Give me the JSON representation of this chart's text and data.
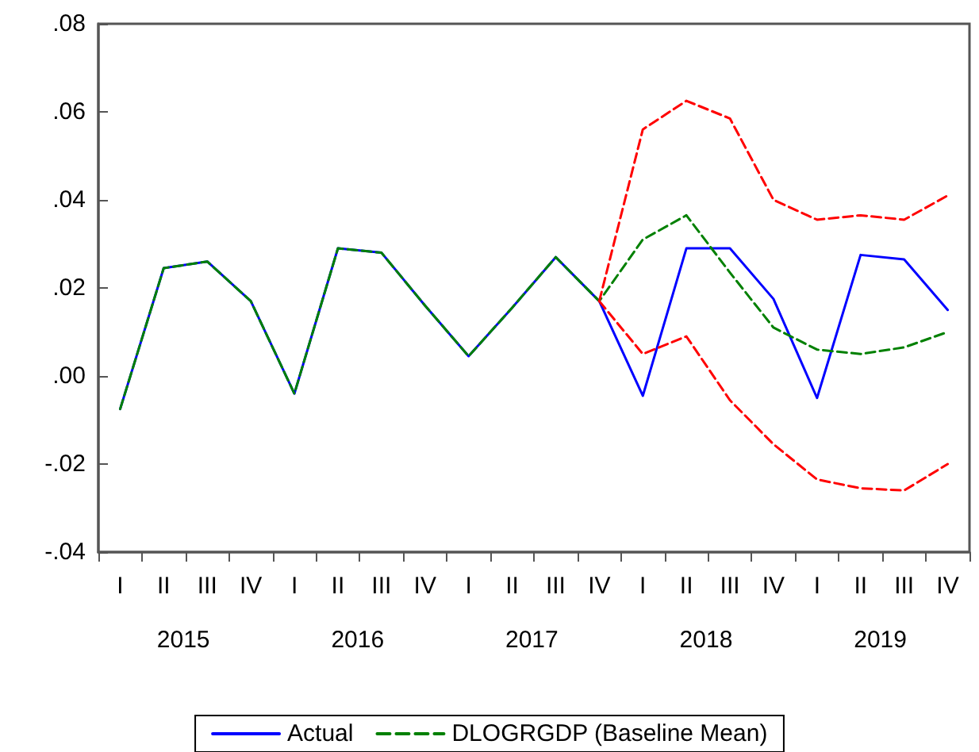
{
  "chart_data": {
    "type": "line",
    "categories": [
      "I",
      "II",
      "III",
      "IV",
      "I",
      "II",
      "III",
      "IV",
      "I",
      "II",
      "III",
      "IV",
      "I",
      "II",
      "III",
      "IV",
      "I",
      "II",
      "III",
      "IV"
    ],
    "annotations": [
      "2015",
      "2016",
      "2017",
      "2018",
      "2019"
    ],
    "series": [
      {
        "name": "Actual",
        "color": "#0000ff",
        "line_style": "solid",
        "values": [
          -0.0075,
          0.0245,
          0.026,
          0.017,
          -0.004,
          0.029,
          0.028,
          0.016,
          0.0045,
          0.0155,
          0.027,
          0.017,
          -0.0045,
          0.029,
          0.029,
          0.0175,
          -0.005,
          0.0275,
          0.0265,
          0.015
        ]
      },
      {
        "name": "DLOGRGDP (Baseline Mean)",
        "color": "#008000",
        "line_style": "dashed",
        "values": [
          -0.0075,
          0.0245,
          0.026,
          0.017,
          -0.004,
          0.029,
          0.028,
          0.016,
          0.0045,
          0.0155,
          0.027,
          0.017,
          0.031,
          0.0365,
          0.0235,
          0.011,
          0.006,
          0.005,
          0.0065,
          0.01
        ]
      },
      {
        "color": "#ff0000",
        "line_style": "dashed",
        "values": [
          null,
          null,
          null,
          null,
          null,
          null,
          null,
          null,
          null,
          null,
          null,
          0.017,
          0.056,
          0.0625,
          0.0585,
          0.04,
          0.0355,
          0.0365,
          0.0355,
          0.041
        ]
      },
      {
        "color": "#ff0000",
        "line_style": "dashed",
        "values": [
          null,
          null,
          null,
          null,
          null,
          null,
          null,
          null,
          null,
          null,
          null,
          0.017,
          0.005,
          0.009,
          -0.0055,
          -0.0155,
          -0.0235,
          -0.0255,
          -0.026,
          -0.02
        ]
      }
    ],
    "ylim": [
      -0.04,
      0.08
    ],
    "yticks": [
      {
        "value": -0.04,
        "label": "-.04"
      },
      {
        "value": -0.02,
        "label": "-.02"
      },
      {
        "value": 0,
        "label": ".00"
      },
      {
        "value": 0.02,
        "label": ".02"
      },
      {
        "value": 0.04,
        "label": ".04"
      },
      {
        "value": 0.06,
        "label": ".06"
      },
      {
        "value": 0.08,
        "label": ".08"
      }
    ],
    "grid": false,
    "legend": "bottom",
    "marker": "none"
  }
}
